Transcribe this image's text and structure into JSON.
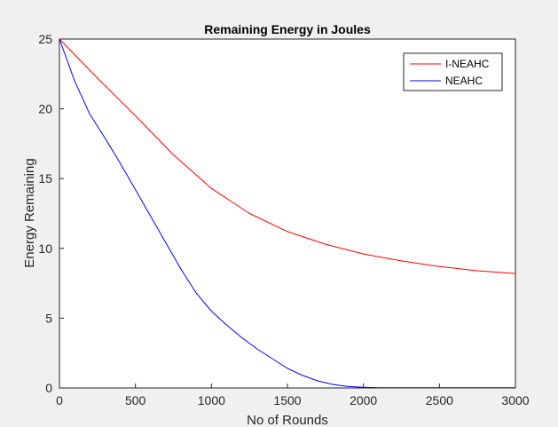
{
  "chart_data": {
    "type": "line",
    "title": "Remaining Energy in Joules",
    "xlabel": "No of Rounds",
    "ylabel": "Energy Remaining",
    "xlim": [
      0,
      3000
    ],
    "ylim": [
      0,
      25
    ],
    "xticks": [
      0,
      500,
      1000,
      1500,
      2000,
      2500,
      3000
    ],
    "yticks": [
      0,
      5,
      10,
      15,
      20,
      25
    ],
    "grid": false,
    "legend_position": "top-right",
    "series": [
      {
        "name": "I-NEAHC",
        "color": "#ff0000",
        "x": [
          0,
          250,
          500,
          750,
          1000,
          1250,
          1500,
          1750,
          2000,
          2250,
          2500,
          2750,
          3000
        ],
        "y": [
          25,
          22.2,
          19.5,
          16.7,
          14.3,
          12.5,
          11.2,
          10.3,
          9.6,
          9.1,
          8.7,
          8.4,
          8.2
        ]
      },
      {
        "name": "NEAHC",
        "color": "#0000ff",
        "x": [
          0,
          100,
          200,
          300,
          400,
          500,
          600,
          700,
          800,
          900,
          1000,
          1100,
          1200,
          1300,
          1400,
          1500,
          1600,
          1700,
          1800,
          1900,
          2000,
          2100,
          2200,
          2500,
          3000
        ],
        "y": [
          25,
          22,
          19.6,
          17.9,
          16.1,
          14.2,
          12.3,
          10.4,
          8.5,
          6.8,
          5.5,
          4.5,
          3.6,
          2.8,
          2.1,
          1.4,
          0.9,
          0.5,
          0.25,
          0.1,
          0.05,
          0.02,
          0.01,
          0.01,
          0.02
        ]
      }
    ]
  }
}
